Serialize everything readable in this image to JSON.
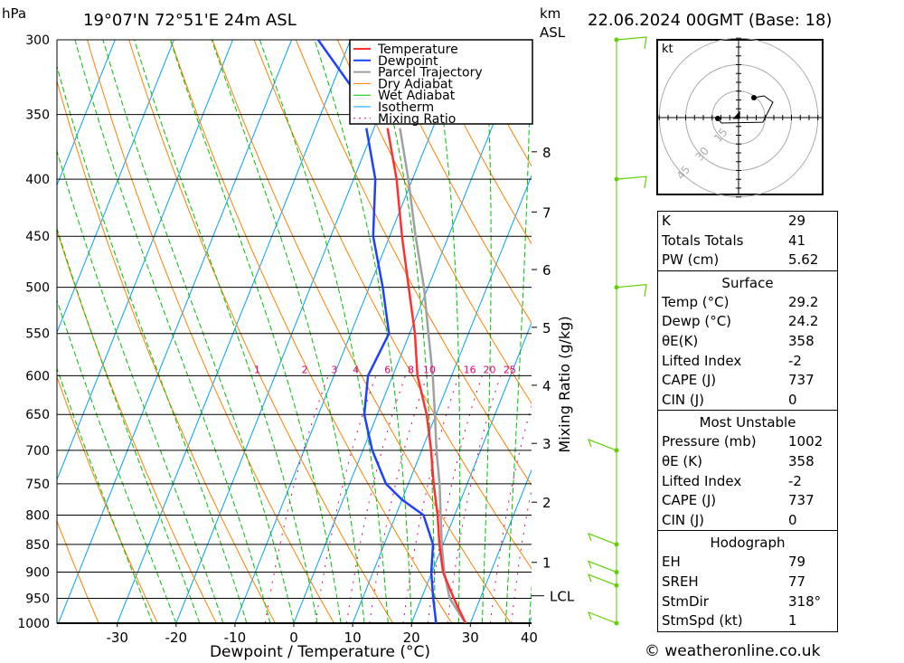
{
  "header": {
    "units_left": "hPa",
    "location": "19°07'N 72°51'E 24m ASL",
    "units_km": "km",
    "units_asl": "ASL",
    "datetime": "22.06.2024 00GMT (Base: 18)"
  },
  "colors": {
    "temperature": "#ff3030",
    "dewpoint": "#2040ff",
    "parcel": "#a0a0a0",
    "dry_adiabat": "#ff8000",
    "wet_adiabat": "#00c000",
    "isotherm": "#00a0ff",
    "mixing_ratio": "#e0007a",
    "wind": "#60d000"
  },
  "chart_data": {
    "type": "skew-t",
    "xlabel": "Dewpoint / Temperature (°C)",
    "ylabel_right": "Mixing Ratio (g/kg)",
    "xlim": [
      -40,
      40
    ],
    "ylim_hpa": [
      1000,
      300
    ],
    "pressure_ticks": [
      "300",
      "350",
      "400",
      "450",
      "500",
      "550",
      "600",
      "650",
      "700",
      "750",
      "800",
      "850",
      "900",
      "950",
      "1000"
    ],
    "temp_ticks": [
      "-30",
      "-20",
      "-10",
      "0",
      "10",
      "20",
      "30",
      "40"
    ],
    "km_ticks": [
      {
        "label": "8",
        "p": 378
      },
      {
        "label": "7",
        "p": 428
      },
      {
        "label": "6",
        "p": 482
      },
      {
        "label": "5",
        "p": 543
      },
      {
        "label": "4",
        "p": 612
      },
      {
        "label": "3",
        "p": 690
      },
      {
        "label": "2",
        "p": 779
      },
      {
        "label": "1",
        "p": 882
      }
    ],
    "lcl": {
      "label": "LCL",
      "p": 945
    },
    "mixing_ratio_labels": [
      "1",
      "2",
      "3",
      "4",
      "6",
      "8",
      "10",
      "16",
      "20",
      "25"
    ],
    "legend": [
      "Temperature",
      "Dewpoint",
      "Parcel Trajectory",
      "Dry Adiabat",
      "Wet Adiabat",
      "Isotherm",
      "Mixing Ratio"
    ],
    "series": [
      {
        "name": "Temperature",
        "p": [
          1000,
          950,
          900,
          850,
          800,
          750,
          700,
          650,
          600,
          550,
          500,
          450,
          400,
          360
        ],
        "t": [
          29.2,
          25.5,
          21.9,
          19.4,
          17.1,
          14.3,
          11.6,
          8.4,
          4.2,
          0.9,
          -3.3,
          -7.9,
          -12.7,
          -17.7
        ]
      },
      {
        "name": "Dewpoint",
        "p": [
          1000,
          950,
          900,
          850,
          800,
          775,
          750,
          700,
          650,
          600,
          550,
          500,
          450,
          400,
          360
        ],
        "t": [
          24.2,
          22.0,
          19.9,
          18.3,
          14.7,
          10.0,
          6.2,
          1.6,
          -2.2,
          -4.2,
          -3.5,
          -7.7,
          -12.8,
          -16.3,
          -21.3
        ]
      },
      {
        "name": "Dewpoint upper",
        "p": [
          300,
          331
        ],
        "t": [
          -35.5,
          -26.5
        ]
      },
      {
        "name": "Parcel Trajectory",
        "p": [
          1000,
          950,
          900,
          850,
          800,
          750,
          700,
          650,
          600,
          550,
          500,
          450,
          400,
          360
        ],
        "t": [
          29.2,
          24.8,
          22.1,
          19.8,
          17.6,
          15.3,
          12.5,
          9.8,
          6.8,
          3.2,
          -0.7,
          -5.6,
          -10.7,
          -15.6
        ]
      }
    ],
    "wind_levels_hpa": [
      300,
      400,
      500,
      700,
      850,
      900,
      925,
      1000
    ]
  },
  "hodograph": {
    "unit_label": "kt",
    "rings": [
      "15",
      "30",
      "45"
    ],
    "trace_kt": [
      [
        -11.8,
        -0.5
      ],
      [
        -9.7,
        -3.1
      ],
      [
        13.8,
        -2.6
      ],
      [
        19.5,
        8.7
      ],
      [
        14.4,
        12.3
      ],
      [
        8.7,
        11.3
      ]
    ],
    "storm_kt": [
      -0.7,
      0.8
    ]
  },
  "indices": {
    "general": [
      {
        "k": "K",
        "v": "29"
      },
      {
        "k": "Totals Totals",
        "v": "41"
      },
      {
        "k": "PW (cm)",
        "v": "5.62"
      }
    ],
    "surface": {
      "title": "Surface",
      "rows": [
        {
          "k": "Temp (°C)",
          "v": "29.2"
        },
        {
          "k": "Dewp (°C)",
          "v": "24.2"
        },
        {
          "k": "θE(K)",
          "v": "358"
        },
        {
          "k": "Lifted Index",
          "v": "-2"
        },
        {
          "k": "CAPE (J)",
          "v": "737"
        },
        {
          "k": "CIN (J)",
          "v": "0"
        }
      ]
    },
    "most_unstable": {
      "title": "Most Unstable",
      "rows": [
        {
          "k": "Pressure (mb)",
          "v": "1002"
        },
        {
          "k": "θE (K)",
          "v": "358"
        },
        {
          "k": "Lifted Index",
          "v": "-2"
        },
        {
          "k": "CAPE (J)",
          "v": "737"
        },
        {
          "k": "CIN (J)",
          "v": "0"
        }
      ]
    },
    "hodograph": {
      "title": "Hodograph",
      "rows": [
        {
          "k": "EH",
          "v": "79"
        },
        {
          "k": "SREH",
          "v": "77"
        },
        {
          "k": "StmDir",
          "v": "318°"
        },
        {
          "k": "StmSpd (kt)",
          "v": "1"
        }
      ]
    }
  },
  "footer": "© weatheronline.co.uk"
}
